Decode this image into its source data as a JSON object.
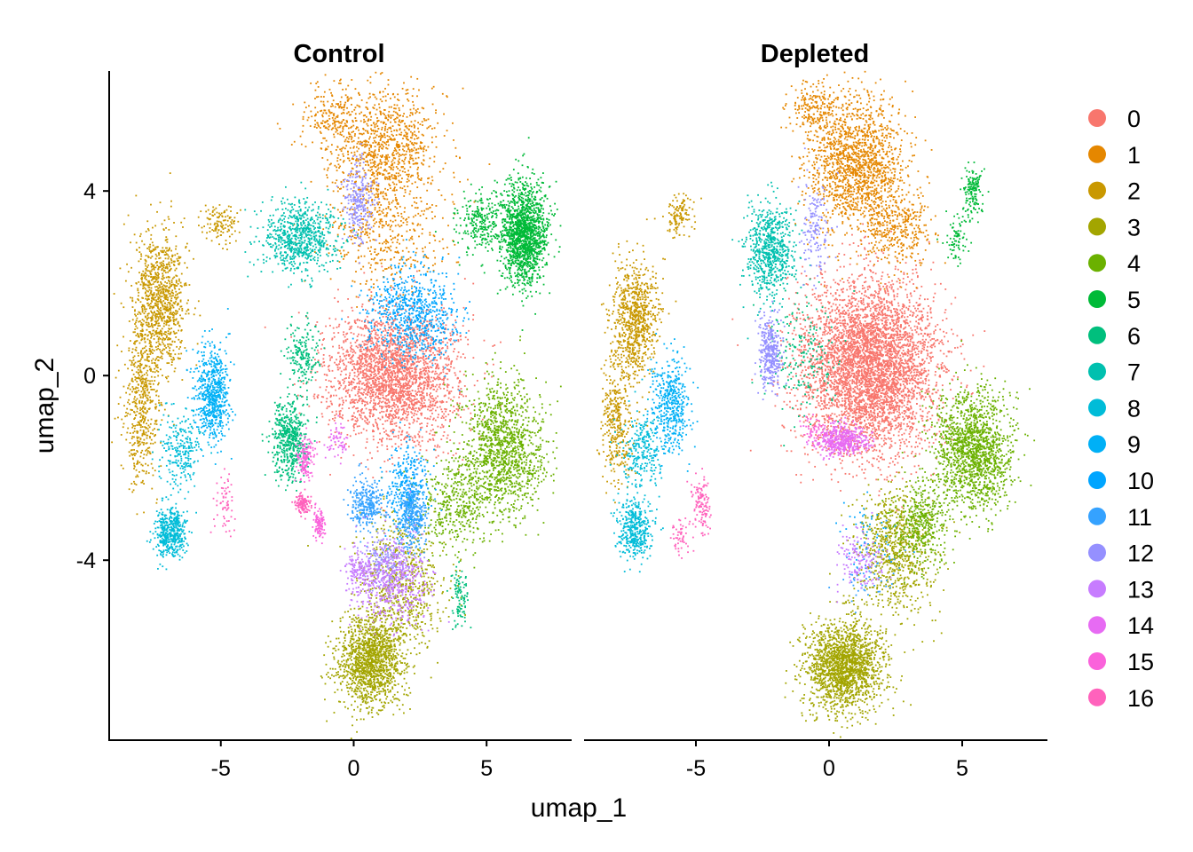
{
  "chart_data": {
    "type": "scatter",
    "xlabel": "umap_1",
    "ylabel": "umap_2",
    "xlim": [
      -9.2,
      8.2
    ],
    "ylim": [
      -7.9,
      6.6
    ],
    "x_ticks": [
      -5,
      0,
      5
    ],
    "y_ticks": [
      -4,
      0,
      4
    ],
    "x_tick_labels": [
      "-5",
      "0",
      "5"
    ],
    "y_tick_labels": [
      "-4",
      "0",
      "4"
    ],
    "grid": false,
    "legend_position": "right",
    "facets": [
      {
        "title": "Control",
        "clusters": [
          {
            "name": "0",
            "color": "#F8766D",
            "regions": [
              [
                1.5,
                0.0,
                2.2,
                1.3,
                2600
              ]
            ]
          },
          {
            "name": "1",
            "color": "#E58700",
            "regions": [
              [
                1.2,
                5.0,
                1.8,
                1.2,
                900
              ],
              [
                1.2,
                3.2,
                2.0,
                1.3,
                500
              ],
              [
                -0.8,
                5.6,
                1.2,
                0.7,
                200
              ]
            ]
          },
          {
            "name": "2",
            "color": "#C99800",
            "regions": [
              [
                -7.3,
                1.6,
                0.9,
                1.4,
                1000
              ],
              [
                -8.0,
                -0.6,
                0.6,
                1.6,
                500
              ],
              [
                -5.0,
                3.3,
                0.7,
                0.4,
                120
              ]
            ]
          },
          {
            "name": "3",
            "color": "#A3A500",
            "regions": [
              [
                0.6,
                -6.2,
                1.1,
                0.9,
                1400
              ],
              [
                1.8,
                -4.5,
                1.5,
                1.3,
                700
              ]
            ]
          },
          {
            "name": "4",
            "color": "#6BB100",
            "regions": [
              [
                5.6,
                -1.6,
                1.4,
                1.3,
                1300
              ],
              [
                3.8,
                -2.8,
                1.2,
                0.9,
                400
              ]
            ]
          },
          {
            "name": "5",
            "color": "#00BA38",
            "regions": [
              [
                6.4,
                3.1,
                0.8,
                1.0,
                1500
              ],
              [
                4.8,
                3.3,
                0.8,
                0.6,
                250
              ]
            ]
          },
          {
            "name": "6",
            "color": "#00BF7D",
            "regions": [
              [
                -2.4,
                -1.4,
                0.6,
                0.8,
                550
              ],
              [
                -1.9,
                0.5,
                0.5,
                0.6,
                180
              ],
              [
                4.0,
                -4.8,
                0.3,
                0.6,
                100
              ]
            ]
          },
          {
            "name": "7",
            "color": "#00C0AF",
            "regions": [
              [
                -2.0,
                3.0,
                1.3,
                0.7,
                750
              ]
            ]
          },
          {
            "name": "8",
            "color": "#00BCD8",
            "regions": [
              [
                -6.9,
                -3.4,
                0.6,
                0.5,
                450
              ],
              [
                -6.5,
                -1.6,
                0.7,
                0.8,
                250
              ]
            ]
          },
          {
            "name": "9",
            "color": "#00B0F6",
            "regions": [
              [
                -5.3,
                -0.4,
                0.6,
                0.9,
                650
              ]
            ]
          },
          {
            "name": "10",
            "color": "#00A5FF",
            "regions": [
              [
                2.3,
                1.3,
                1.5,
                0.9,
                750
              ],
              [
                2.0,
                -2.5,
                0.7,
                0.9,
                350
              ]
            ]
          },
          {
            "name": "11",
            "color": "#35A2FF",
            "regions": [
              [
                0.5,
                -2.8,
                0.6,
                0.5,
                300
              ],
              [
                2.2,
                -3.0,
                0.5,
                0.7,
                300
              ]
            ]
          },
          {
            "name": "12",
            "color": "#9590FF",
            "regions": [
              [
                0.2,
                3.8,
                0.5,
                0.8,
                250
              ],
              [
                1.2,
                -4.0,
                0.8,
                0.6,
                180
              ]
            ]
          },
          {
            "name": "13",
            "color": "#C77CFF",
            "regions": [
              [
                1.5,
                -4.4,
                1.2,
                0.9,
                500
              ],
              [
                0.2,
                -4.3,
                0.5,
                0.5,
                150
              ]
            ]
          },
          {
            "name": "14",
            "color": "#E76BF3",
            "regions": [
              [
                -0.6,
                -1.4,
                0.3,
                0.3,
                60
              ]
            ]
          },
          {
            "name": "15",
            "color": "#FA62DB",
            "regions": [
              [
                -1.8,
                -1.8,
                0.3,
                0.4,
                140
              ],
              [
                -1.3,
                -3.2,
                0.2,
                0.3,
                100
              ]
            ]
          },
          {
            "name": "16",
            "color": "#FF62BC",
            "regions": [
              [
                -1.9,
                -2.8,
                0.3,
                0.2,
                130
              ],
              [
                -4.9,
                -2.8,
                0.4,
                0.6,
                60
              ]
            ]
          }
        ]
      },
      {
        "title": "Depleted",
        "clusters": [
          {
            "name": "0",
            "color": "#F8766D",
            "regions": [
              [
                1.5,
                0.2,
                2.3,
                1.7,
                4500
              ]
            ]
          },
          {
            "name": "1",
            "color": "#E58700",
            "regions": [
              [
                1.0,
                4.6,
                1.6,
                1.3,
                1500
              ],
              [
                -0.5,
                5.8,
                0.9,
                0.5,
                200
              ],
              [
                2.5,
                3.2,
                1.2,
                0.8,
                400
              ]
            ]
          },
          {
            "name": "2",
            "color": "#C99800",
            "regions": [
              [
                -7.3,
                1.2,
                0.8,
                1.2,
                800
              ],
              [
                -8.0,
                -1.0,
                0.5,
                1.2,
                350
              ],
              [
                -5.6,
                3.5,
                0.5,
                0.4,
                120
              ]
            ]
          },
          {
            "name": "3",
            "color": "#A3A500",
            "regions": [
              [
                0.6,
                -6.3,
                1.3,
                0.9,
                1800
              ],
              [
                2.5,
                -3.8,
                1.3,
                1.2,
                800
              ]
            ]
          },
          {
            "name": "4",
            "color": "#6BB100",
            "regions": [
              [
                5.4,
                -1.6,
                1.4,
                1.2,
                1500
              ],
              [
                3.5,
                -3.2,
                0.9,
                0.8,
                400
              ]
            ]
          },
          {
            "name": "5",
            "color": "#00BA38",
            "regions": [
              [
                5.4,
                4.0,
                0.3,
                0.5,
                150
              ],
              [
                4.8,
                3.0,
                0.4,
                0.5,
                80
              ]
            ]
          },
          {
            "name": "6",
            "color": "#00BF7D",
            "regions": [
              [
                -1.0,
                0.5,
                1.2,
                1.2,
                200
              ]
            ]
          },
          {
            "name": "7",
            "color": "#00C0AF",
            "regions": [
              [
                -2.2,
                2.7,
                0.8,
                0.9,
                700
              ]
            ]
          },
          {
            "name": "8",
            "color": "#00BCD8",
            "regions": [
              [
                -7.3,
                -3.3,
                0.6,
                0.6,
                400
              ],
              [
                -7.0,
                -1.6,
                0.7,
                0.8,
                250
              ]
            ]
          },
          {
            "name": "9",
            "color": "#00B0F6",
            "regions": [
              [
                -5.9,
                -0.7,
                0.6,
                0.9,
                450
              ]
            ]
          },
          {
            "name": "10",
            "color": "#00A5FF",
            "regions": [
              [
                1.5,
                -3.5,
                1.0,
                0.8,
                50
              ]
            ]
          },
          {
            "name": "11",
            "color": "#35A2FF",
            "regions": [
              [
                1.5,
                -4.2,
                1.0,
                0.8,
                60
              ]
            ]
          },
          {
            "name": "12",
            "color": "#9590FF",
            "regions": [
              [
                -2.2,
                0.5,
                0.4,
                0.7,
                350
              ],
              [
                -0.5,
                3.2,
                0.5,
                1.0,
                150
              ]
            ]
          },
          {
            "name": "13",
            "color": "#C77CFF",
            "regions": [
              [
                1.2,
                -4.0,
                0.8,
                0.6,
                150
              ]
            ]
          },
          {
            "name": "14",
            "color": "#E76BF3",
            "regions": [
              [
                0.5,
                -1.4,
                0.9,
                0.3,
                450
              ]
            ]
          },
          {
            "name": "15",
            "color": "#FA62DB",
            "regions": [
              [
                -0.5,
                -1.2,
                0.5,
                0.3,
                60
              ]
            ]
          },
          {
            "name": "16",
            "color": "#FF62BC",
            "regions": [
              [
                -4.8,
                -2.8,
                0.4,
                0.6,
                120
              ],
              [
                -5.6,
                -3.5,
                0.3,
                0.4,
                50
              ]
            ]
          }
        ]
      }
    ],
    "legend": [
      {
        "label": "0",
        "color": "#F8766D"
      },
      {
        "label": "1",
        "color": "#E58700"
      },
      {
        "label": "2",
        "color": "#C99800"
      },
      {
        "label": "3",
        "color": "#A3A500"
      },
      {
        "label": "4",
        "color": "#6BB100"
      },
      {
        "label": "5",
        "color": "#00BA38"
      },
      {
        "label": "6",
        "color": "#00BF7D"
      },
      {
        "label": "7",
        "color": "#00C0AF"
      },
      {
        "label": "8",
        "color": "#00BCD8"
      },
      {
        "label": "9",
        "color": "#00B0F6"
      },
      {
        "label": "10",
        "color": "#00A5FF"
      },
      {
        "label": "11",
        "color": "#35A2FF"
      },
      {
        "label": "12",
        "color": "#9590FF"
      },
      {
        "label": "13",
        "color": "#C77CFF"
      },
      {
        "label": "14",
        "color": "#E76BF3"
      },
      {
        "label": "15",
        "color": "#FA62DB"
      },
      {
        "label": "16",
        "color": "#FF62BC"
      }
    ]
  }
}
